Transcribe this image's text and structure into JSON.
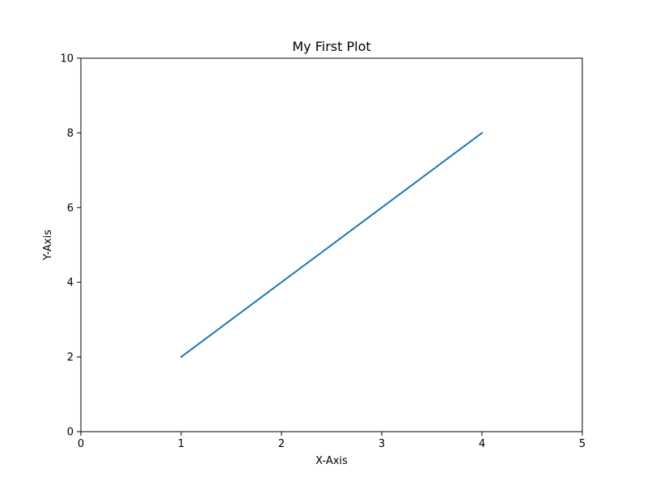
{
  "chart_data": {
    "type": "line",
    "title": "My First Plot",
    "xlabel": "X-Axis",
    "ylabel": "Y-Axis",
    "xlim": [
      0,
      5
    ],
    "ylim": [
      0,
      10
    ],
    "xticks": [
      0,
      1,
      2,
      3,
      4,
      5
    ],
    "yticks": [
      0,
      2,
      4,
      6,
      8,
      10
    ],
    "grid": false,
    "series": [
      {
        "x": [
          1,
          2,
          3,
          4
        ],
        "y": [
          2,
          4,
          6,
          8
        ],
        "color": "#1f77b4"
      }
    ]
  }
}
